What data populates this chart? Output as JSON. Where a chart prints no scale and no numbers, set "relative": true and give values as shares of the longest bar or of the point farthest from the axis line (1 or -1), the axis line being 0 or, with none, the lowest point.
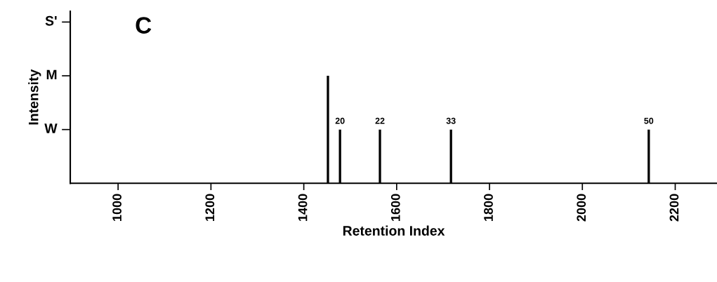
{
  "chart_data": {
    "type": "bar",
    "xlabel": "Retention Index",
    "ylabel": "Intensity",
    "x": [
      1452,
      1478,
      1564,
      1717,
      2143
    ],
    "values": [
      1,
      0.5,
      0.5,
      0.5,
      0.5
    ],
    "relative": true,
    "color": "#000000",
    "xlim": [
      897,
      2290
    ],
    "xticks": [
      1000,
      1200,
      1400,
      1600,
      1800,
      2000,
      2200
    ],
    "annotations": [
      "C",
      {
        "text": "20",
        "x": 1478,
        "y": 0.5
      },
      {
        "text": "22",
        "x": 1564,
        "y": 0.5
      },
      {
        "text": "33",
        "x": 1717,
        "y": 0.5
      },
      {
        "text": "50",
        "x": 2143,
        "y": 0.5
      },
      "W",
      "M",
      "S'"
    ],
    "grid": false
  }
}
